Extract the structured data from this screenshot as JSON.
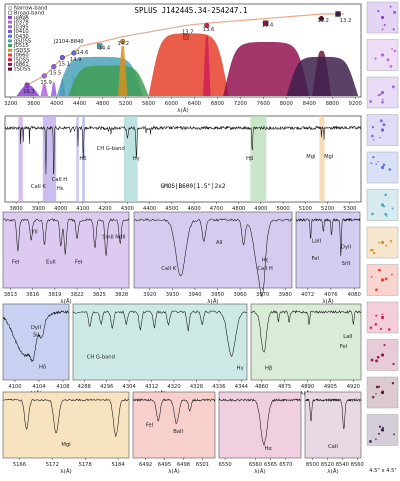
{
  "chart_data": [
    {
      "type": "scatter",
      "panel": "photometry",
      "title": "SPLUS J142445.34-254247.1",
      "xlabel": "λ(Å)",
      "xlim": [
        3100,
        9300
      ],
      "ticks": [
        "3200",
        "3600",
        "4000",
        "4400",
        "4800",
        "5200",
        "5600",
        "6000",
        "6400",
        "6800",
        "7200",
        "7600",
        "8000",
        "8400",
        "8800",
        "9200"
      ],
      "tick_values": [
        3200,
        3600,
        4000,
        4400,
        4800,
        5200,
        5600,
        6000,
        6400,
        6800,
        7200,
        7600,
        8000,
        8400,
        8800,
        9200
      ],
      "legend": {
        "placement": "top-left",
        "entries": [
          "Narrow-band",
          "Broad-band",
          "uJAVA",
          "J0378",
          "J0395",
          "J0410",
          "J0430",
          "gSDSS",
          "J0515",
          "rSDSS",
          "J0660",
          "iSDSS",
          "J0861",
          "zSDSS"
        ],
        "colors": [
          "#ffffff",
          "#ffffff",
          "#8a3fd1",
          "#b266d6",
          "#9460d8",
          "#6b5fd9",
          "#5773d1",
          "#4aa2b9",
          "#3f9e55",
          "#d78f1f",
          "#e8412b",
          "#cf1f55",
          "#92124f",
          "#5a0d2e"
        ]
      },
      "annotation": "J2104-8840",
      "magnitudes": {
        "labels": [
          "16.3",
          "15.9",
          "15.5",
          "15.1",
          "14.9",
          "14.6",
          "14.4",
          "14.2",
          "13.7",
          "13.6",
          "13.4",
          "13.2",
          "13.2"
        ],
        "x": [
          3485,
          3785,
          3950,
          4100,
          4300,
          4420,
          4800,
          5130,
          6250,
          6614,
          7640,
          8610,
          9000
        ]
      },
      "bands": [
        {
          "name": "uJAVA",
          "x": 3485,
          "color": "#8a3fd1"
        },
        {
          "name": "J0378",
          "x": 3785,
          "color": "#b266d6"
        },
        {
          "name": "J0395",
          "x": 3950,
          "color": "#9460d8"
        },
        {
          "name": "J0410",
          "x": 4100,
          "color": "#6b5fd9"
        },
        {
          "name": "J0430",
          "x": 4300,
          "color": "#5773d1"
        },
        {
          "name": "gSDSS",
          "x": 4750,
          "color": "#4aa2b9"
        },
        {
          "name": "J0515",
          "x": 5150,
          "color": "#d78f1f"
        },
        {
          "name": "rSDSS",
          "x": 6250,
          "color": "#e8412b"
        },
        {
          "name": "J0660",
          "x": 6614,
          "color": "#cf1f55"
        },
        {
          "name": "iSDSS",
          "x": 7640,
          "color": "#92124f"
        },
        {
          "name": "J0861",
          "x": 8610,
          "color": "#5a0d2e"
        },
        {
          "name": "zSDSS",
          "x": 8900,
          "color": "#3e1f4e"
        }
      ]
    },
    {
      "type": "line",
      "panel": "full-spectrum",
      "xlabel": "λ(Å)",
      "xlim": [
        3750,
        5350
      ],
      "ticks": [
        "3800",
        "3900",
        "4000",
        "4100",
        "4200",
        "4300",
        "4400",
        "4500",
        "4600",
        "4700",
        "4800",
        "4900",
        "5000",
        "5100",
        "5200",
        "5300"
      ],
      "tick_values": [
        3800,
        3900,
        4000,
        4100,
        4200,
        4300,
        4400,
        4500,
        4600,
        4700,
        4800,
        4900,
        5000,
        5100,
        5200,
        5300
      ],
      "caption": "GMOS|B600|1.5\"|2x2",
      "annotations": [
        "CaII K",
        "CaII H",
        "Hε",
        "Hδ",
        "CH G-band",
        "Hγ",
        "Hβ",
        "MgI",
        "MgI"
      ]
    },
    {
      "type": "line",
      "panel": "zoom-1",
      "xlabel": "λ(Å)",
      "ticks": [
        "3813",
        "3816",
        "3819",
        "3822",
        "3825",
        "3828"
      ],
      "tick_values": [
        3813,
        3816,
        3819,
        3822,
        3825,
        3828
      ],
      "xlim": [
        3812,
        3829
      ],
      "annotations": [
        "YII",
        "FeI",
        "EuII",
        "FeI",
        "SmII NdII"
      ]
    },
    {
      "type": "line",
      "panel": "zoom-2",
      "xlabel": "λ(Å)",
      "ticks": [
        "3920",
        "3930",
        "3940",
        "3950",
        "3960",
        "3970",
        "3980"
      ],
      "tick_values": [
        3920,
        3930,
        3940,
        3950,
        3960,
        3970,
        3980
      ],
      "xlim": [
        3913,
        3983
      ],
      "annotations": [
        "CaII K",
        "AlI",
        "Hε",
        "CaII H"
      ]
    },
    {
      "type": "line",
      "panel": "zoom-3",
      "xlabel": "λ(Å)",
      "ticks": [
        "4072",
        "4076",
        "4080"
      ],
      "tick_values": [
        4072,
        4076,
        4080
      ],
      "xlim": [
        4070,
        4081
      ],
      "annotations": [
        "LaII",
        "DyII",
        "FeI",
        "SrII"
      ]
    },
    {
      "type": "line",
      "panel": "zoom-4",
      "xlabel": "λ(Å)",
      "ticks": [
        "4100",
        "4104",
        "4108"
      ],
      "tick_values": [
        4100,
        4104,
        4108
      ],
      "xlim": [
        4098,
        4109
      ],
      "annotations": [
        "DyII",
        "SiI",
        "Hδ"
      ]
    },
    {
      "type": "line",
      "panel": "zoom-5",
      "xlabel": "λ(Å)",
      "ticks": [
        "4288",
        "4296",
        "4304",
        "4312",
        "4320",
        "4328",
        "4336",
        "4344"
      ],
      "tick_values": [
        4288,
        4296,
        4304,
        4312,
        4320,
        4328,
        4336,
        4344
      ],
      "xlim": [
        4284,
        4346
      ],
      "annotations": [
        "CH G-band",
        "Hγ"
      ]
    },
    {
      "type": "line",
      "panel": "zoom-6",
      "xlabel": "λ(Å)",
      "ticks": [
        "4860",
        "4875",
        "4890",
        "4905",
        "4920"
      ],
      "tick_values": [
        4860,
        4875,
        4890,
        4905,
        4920
      ],
      "xlim": [
        4853,
        4925
      ],
      "annotations": [
        "Hβ",
        "LaII",
        "FeI"
      ]
    },
    {
      "type": "line",
      "panel": "zoom-7",
      "xlabel": "λ(Å)",
      "ticks": [
        "5166",
        "5172",
        "5178",
        "5184"
      ],
      "tick_values": [
        5166,
        5172,
        5178,
        5184
      ],
      "xlim": [
        5163,
        5186
      ],
      "annotations": [
        "MgI"
      ]
    },
    {
      "type": "line",
      "panel": "zoom-8",
      "xlabel": "λ(Å)",
      "ticks": [
        "6492",
        "6495",
        "6498",
        "6501"
      ],
      "tick_values": [
        6492,
        6495,
        6498,
        6501
      ],
      "xlim": [
        6490,
        6503
      ],
      "annotations": [
        "FeI",
        "BaII"
      ]
    },
    {
      "type": "line",
      "panel": "zoom-9",
      "xlabel": "λ(Å)",
      "ticks": [
        "6550",
        "6560",
        "6565",
        "6570"
      ],
      "tick_values": [
        6550,
        6560,
        6565,
        6570
      ],
      "xlim": [
        6548,
        6575
      ],
      "annotations": [
        "Hα"
      ]
    },
    {
      "type": "line",
      "panel": "zoom-10",
      "xlabel": "λ(Å)",
      "ticks": [
        "8500",
        "8520",
        "8540",
        "8560"
      ],
      "tick_values": [
        8500,
        8520,
        8540,
        8560
      ],
      "xlim": [
        8490,
        8565
      ],
      "annotations": [
        "CaII"
      ]
    }
  ],
  "stamp_caption": "4.5\" x 4.5\""
}
